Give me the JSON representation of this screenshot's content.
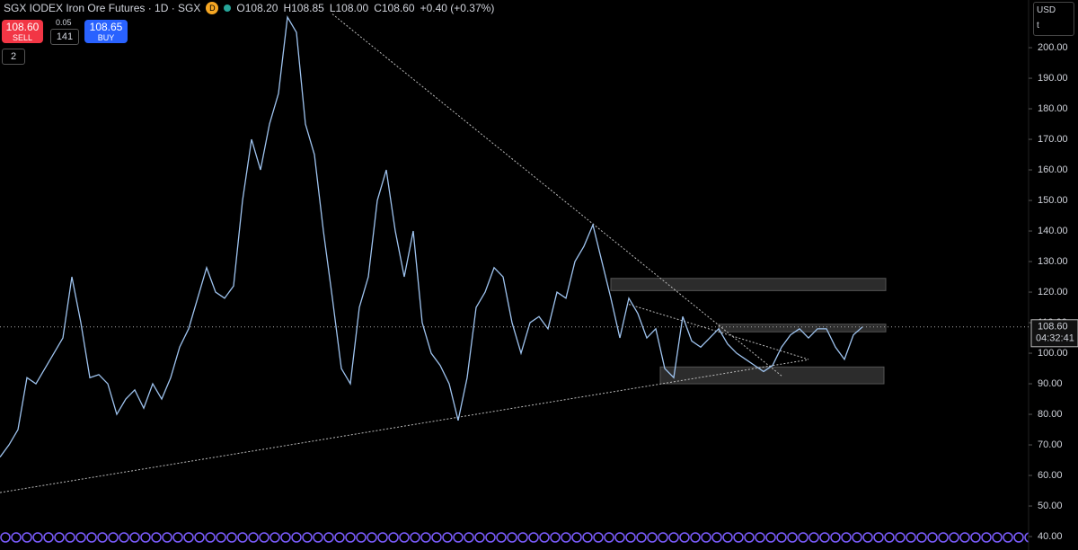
{
  "header": {
    "symbol": "SGX IODEX Iron Ore Futures · 1D · SGX",
    "badge": "D",
    "open": "O108.20",
    "high": "H108.85",
    "low": "L108.00",
    "close": "C108.60",
    "change": "+0.40 (+0.37%)"
  },
  "trade": {
    "sell_price": "108.60",
    "sell": "SELL",
    "spread": "0.05",
    "quantity": "141",
    "buy_price": "108.65",
    "buy": "BUY"
  },
  "indicators_toggle": "2",
  "currency": "USD",
  "unit": "t",
  "countdown": "04:32:41",
  "chart_data": {
    "type": "line",
    "color": "#9ec3ef",
    "values": [
      66,
      70,
      75,
      92,
      90,
      95,
      100,
      105,
      125,
      110,
      92,
      93,
      90,
      80,
      85,
      88,
      82,
      90,
      85,
      92,
      102,
      108,
      118,
      128,
      120,
      118,
      122,
      150,
      170,
      160,
      175,
      185,
      210,
      205,
      175,
      165,
      140,
      118,
      95,
      90,
      115,
      125,
      150,
      160,
      140,
      125,
      140,
      110,
      100,
      96,
      90,
      78,
      92,
      115,
      120,
      128,
      125,
      110,
      100,
      110,
      112,
      108,
      120,
      118,
      130,
      135,
      142,
      130,
      118,
      105,
      118,
      113,
      105,
      108,
      95,
      92,
      112,
      104,
      102,
      105,
      108,
      103,
      100,
      98,
      96,
      94,
      96,
      102,
      106,
      108,
      105,
      108,
      108,
      102,
      98,
      106,
      108.6
    ],
    "last_value": 108.6,
    "last_label": "108.60",
    "ylim": [
      35.6,
      215.6
    ],
    "yticks": [
      {
        "value": 40,
        "label": "40.00"
      },
      {
        "value": 50,
        "label": "50.00"
      },
      {
        "value": 60,
        "label": "60.00"
      },
      {
        "value": 70,
        "label": "70.00"
      },
      {
        "value": 80,
        "label": "80.00"
      },
      {
        "value": 90,
        "label": "90.00"
      },
      {
        "value": 100,
        "label": "100.00"
      },
      {
        "value": 110,
        "label": "110.00"
      },
      {
        "value": 120,
        "label": "120.00"
      },
      {
        "value": 130,
        "label": "130.00"
      },
      {
        "value": 140,
        "label": "140.00"
      },
      {
        "value": 150,
        "label": "150.00"
      },
      {
        "value": 160,
        "label": "160.00"
      },
      {
        "value": 170,
        "label": "170.00"
      },
      {
        "value": 180,
        "label": "180.00"
      },
      {
        "value": 190,
        "label": "190.00"
      },
      {
        "value": 200,
        "label": "200.00"
      }
    ],
    "zones": [
      {
        "start": 68,
        "end": 98.6,
        "low": 120.5,
        "high": 124.5
      },
      {
        "start": 73.5,
        "end": 98.4,
        "low": 90,
        "high": 95.5
      },
      {
        "start": 80,
        "end": 98.6,
        "low": 107,
        "high": 109.5
      }
    ],
    "trendlines": [
      [
        [
          0,
          54.4
        ],
        [
          90,
          97.9
        ]
      ],
      [
        [
          37,
          211
        ],
        [
          87,
          92.6
        ]
      ],
      [
        [
          70,
          116
        ],
        [
          90,
          98
        ]
      ]
    ]
  }
}
